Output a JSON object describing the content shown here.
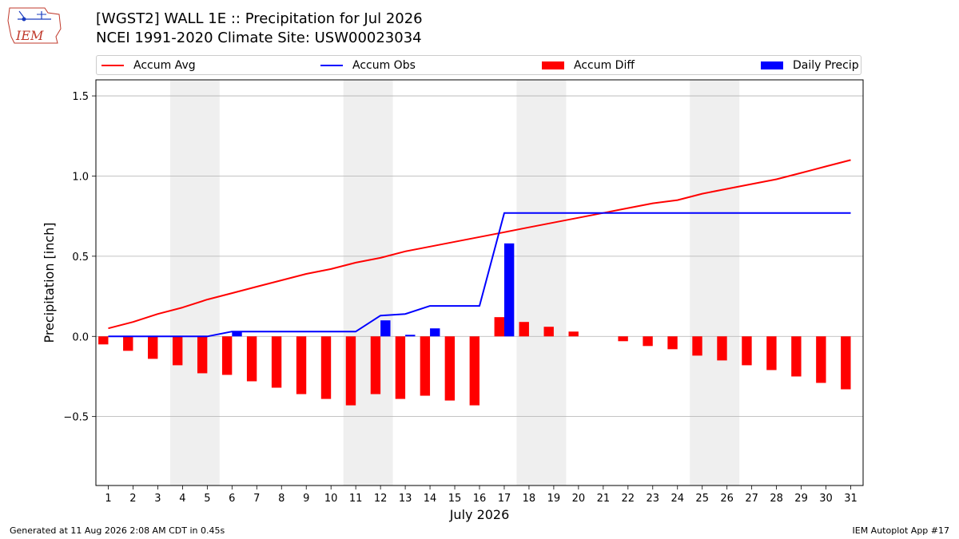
{
  "header": {
    "title_line1": "[WGST2] WALL 1E :: Precipitation for Jul 2026",
    "title_line2": "NCEI 1991-2020 Climate Site: USW00023034",
    "logo_text": "IEM"
  },
  "footer": {
    "generated": "Generated at 11 Aug 2026 2:08 AM CDT in 0.45s",
    "app": "IEM Autoplot App #17"
  },
  "colors": {
    "accum_avg": "#ff0000",
    "accum_obs": "#0000ff",
    "accum_diff": "#ff0000",
    "daily_precip": "#0000ff",
    "weekend_shade": "#efefef",
    "grid": "#b0b0b0"
  },
  "chart_data": {
    "type": "bar",
    "title": "[WGST2] WALL 1E :: Precipitation for Jul 2026",
    "subtitle": "NCEI 1991-2020 Climate Site: USW00023034",
    "xlabel": "July 2026",
    "ylabel": "Precipitation [inch]",
    "xlim": [
      0.5,
      31.5
    ],
    "ylim": [
      -0.93,
      1.6
    ],
    "yticks": [
      -0.5,
      0.0,
      0.5,
      1.0,
      1.5
    ],
    "ytick_labels": [
      "−0.5",
      "0.0",
      "0.5",
      "1.0",
      "1.5"
    ],
    "x": [
      1,
      2,
      3,
      4,
      5,
      6,
      7,
      8,
      9,
      10,
      11,
      12,
      13,
      14,
      15,
      16,
      17,
      18,
      19,
      20,
      21,
      22,
      23,
      24,
      25,
      26,
      27,
      28,
      29,
      30,
      31
    ],
    "grid": "y",
    "legend_position": "top",
    "shaded_days": [
      [
        4,
        5
      ],
      [
        11,
        12
      ],
      [
        18,
        19
      ],
      [
        25,
        26
      ]
    ],
    "series": [
      {
        "name": "Accum Avg",
        "kind": "line",
        "values": [
          0.05,
          0.09,
          0.14,
          0.18,
          0.23,
          0.27,
          0.31,
          0.35,
          0.39,
          0.42,
          0.46,
          0.49,
          0.53,
          0.56,
          0.59,
          0.62,
          0.65,
          0.68,
          0.71,
          0.74,
          0.77,
          0.8,
          0.83,
          0.85,
          0.89,
          0.92,
          0.95,
          0.98,
          1.02,
          1.06,
          1.1
        ]
      },
      {
        "name": "Accum Obs",
        "kind": "line",
        "values": [
          0,
          0,
          0,
          0,
          0,
          0.03,
          0.03,
          0.03,
          0.03,
          0.03,
          0.03,
          0.13,
          0.14,
          0.19,
          0.19,
          0.19,
          0.77,
          0.77,
          0.77,
          0.77,
          0.77,
          0.77,
          0.77,
          0.77,
          0.77,
          0.77,
          0.77,
          0.77,
          0.77,
          0.77,
          0.77
        ]
      },
      {
        "name": "Accum Diff",
        "kind": "bar",
        "values": [
          -0.05,
          -0.09,
          -0.14,
          -0.18,
          -0.23,
          -0.24,
          -0.28,
          -0.32,
          -0.36,
          -0.39,
          -0.43,
          -0.36,
          -0.39,
          -0.37,
          -0.4,
          -0.43,
          0.12,
          0.09,
          0.06,
          0.03,
          0.0,
          -0.03,
          -0.06,
          -0.08,
          -0.12,
          -0.15,
          -0.18,
          -0.21,
          -0.25,
          -0.29,
          -0.33
        ]
      },
      {
        "name": "Daily Precip",
        "kind": "bar",
        "values": [
          0,
          0,
          0,
          0,
          0,
          0.03,
          0,
          0,
          0,
          0,
          0,
          0.1,
          0.01,
          0.05,
          0,
          0,
          0.58,
          0,
          0,
          0,
          0,
          0,
          0,
          0,
          0,
          0,
          0,
          0,
          0,
          0,
          0
        ]
      }
    ]
  }
}
